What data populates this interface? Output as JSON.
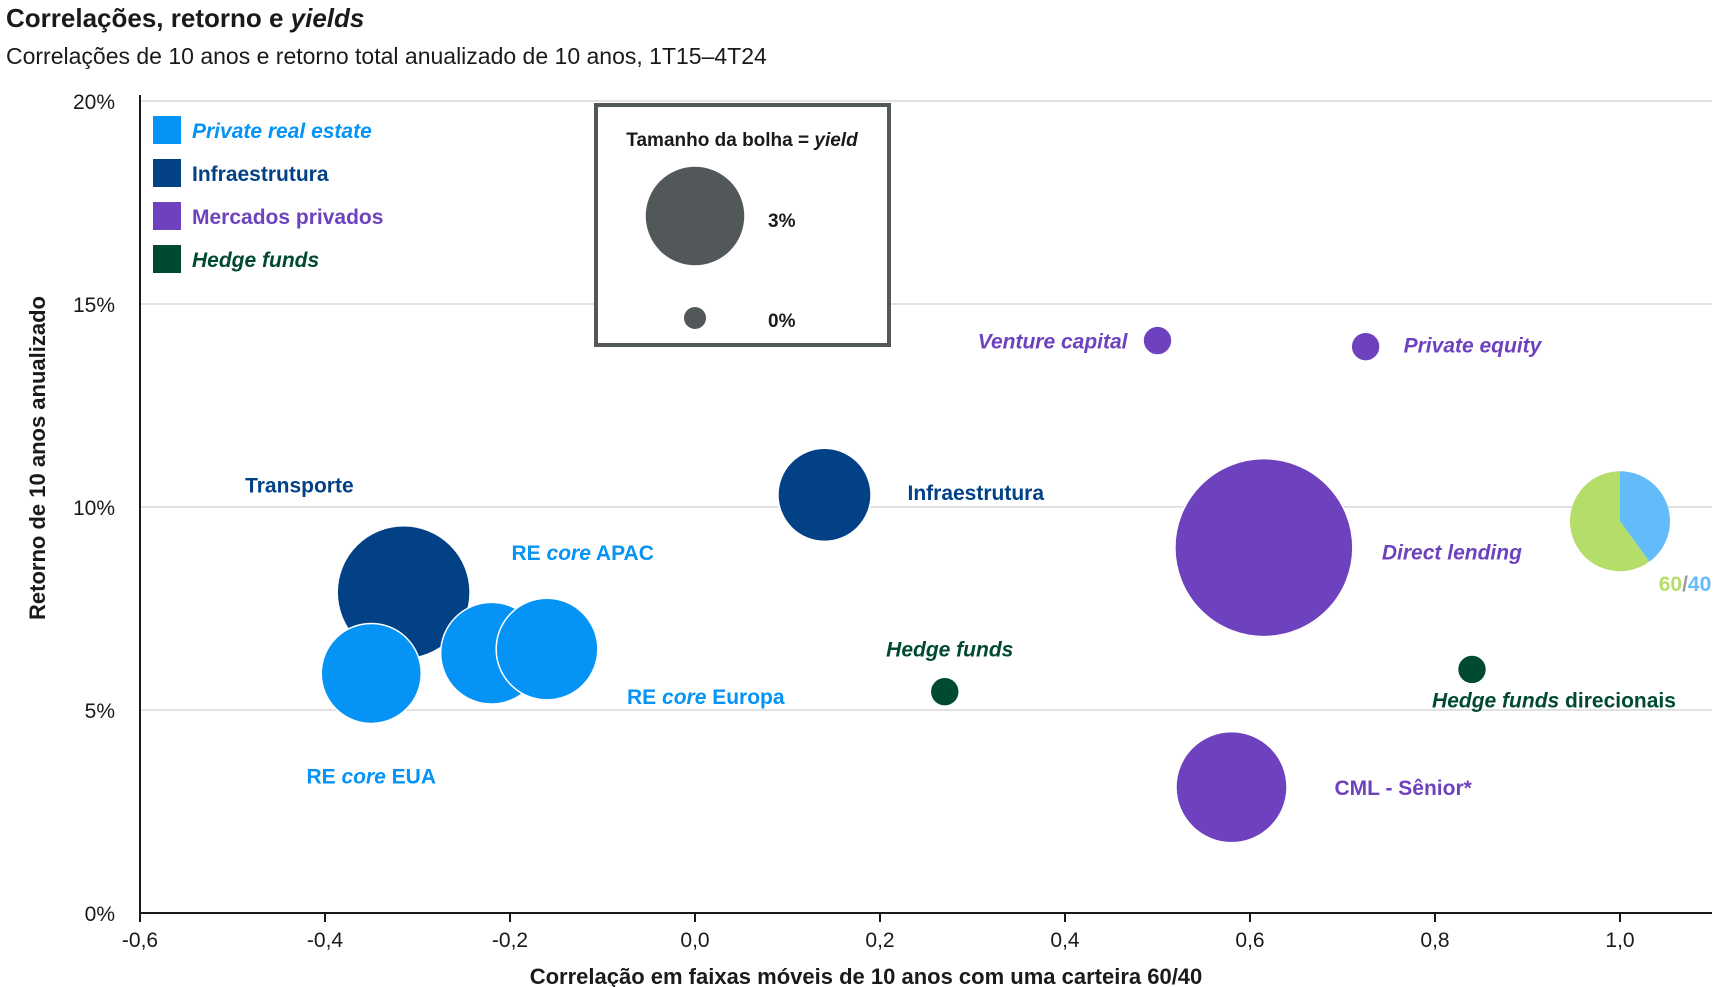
{
  "chart_data": {
    "type": "scatter",
    "title_main": "Correlações, retorno e ",
    "title_emph": "yields",
    "subtitle": "Correlações de 10 anos e retorno total anualizado de 10 anos, 1T15–4T24",
    "xlabel": "Correlação em faixas móveis de 10 anos com uma carteira 60/40",
    "ylabel": "Retorno de 10 anos anualizado",
    "xlim": [
      -0.6,
      1.1
    ],
    "ylim": [
      0,
      20
    ],
    "x_ticks": [
      -0.6,
      -0.4,
      -0.2,
      0.0,
      0.2,
      0.4,
      0.6,
      0.8,
      1.0
    ],
    "x_tick_labels": [
      "-0,6",
      "-0,4",
      "-0,2",
      "0,0",
      "0,2",
      "0,4",
      "0,6",
      "0,8",
      "1,0"
    ],
    "y_ticks": [
      0,
      5,
      10,
      15,
      20
    ],
    "y_tick_labels": [
      "0%",
      "5%",
      "10%",
      "15%",
      "20%"
    ],
    "colors": {
      "private_real_estate": "#0593F5",
      "infraestrutura": "#024186",
      "mercados_privados": "#6E42BF",
      "hedge_funds": "#004A2F",
      "size_key": "#52575A",
      "pie_60": "#B5DD6A",
      "pie_40": "#63BCF9"
    },
    "legend": [
      {
        "label": "Private real estate",
        "italic": true,
        "color": "#0593F5"
      },
      {
        "label": "Infraestrutura",
        "italic": false,
        "color": "#024186"
      },
      {
        "label": "Mercados privados",
        "italic": false,
        "color": "#6E42BF"
      },
      {
        "label": "Hedge funds",
        "italic": true,
        "color": "#004A2F"
      }
    ],
    "size_legend": {
      "title_main": "Tamanho da bolha = ",
      "title_emph": "yield",
      "items": [
        {
          "label": "3%",
          "yield": 3.0
        },
        {
          "label": "0%",
          "yield": 0.0
        }
      ]
    },
    "points": [
      {
        "name": "Transporte",
        "label_parts": [
          {
            "t": "Transporte",
            "i": false
          }
        ],
        "x": -0.315,
        "y": 7.9,
        "yield": 5.3,
        "color": "#024186"
      },
      {
        "name": "RE core EUA",
        "label_parts": [
          {
            "t": "RE ",
            "i": false
          },
          {
            "t": "core",
            "i": true
          },
          {
            "t": " EUA",
            "i": false
          }
        ],
        "x": -0.35,
        "y": 5.9,
        "yield": 3.0,
        "color": "#0593F5"
      },
      {
        "name": "RE core APAC",
        "label_parts": [
          {
            "t": "RE ",
            "i": false
          },
          {
            "t": "core",
            "i": true
          },
          {
            "t": " APAC",
            "i": false
          }
        ],
        "x": -0.22,
        "y": 6.4,
        "yield": 3.1,
        "color": "#0593F5"
      },
      {
        "name": "RE core Europa",
        "label_parts": [
          {
            "t": "RE ",
            "i": false
          },
          {
            "t": "core",
            "i": true
          },
          {
            "t": " Europa",
            "i": false
          }
        ],
        "x": -0.16,
        "y": 6.5,
        "yield": 3.1,
        "color": "#0593F5"
      },
      {
        "name": "Infraestrutura",
        "label_parts": [
          {
            "t": "Infraestrutura",
            "i": false
          }
        ],
        "x": 0.14,
        "y": 10.3,
        "yield": 2.6,
        "color": "#024186"
      },
      {
        "name": "Hedge funds",
        "label_parts": [
          {
            "t": "Hedge funds",
            "i": true
          }
        ],
        "x": 0.27,
        "y": 5.45,
        "yield": 0.25,
        "color": "#004A2F"
      },
      {
        "name": "Venture capital",
        "label_parts": [
          {
            "t": "Venture capital",
            "i": true
          }
        ],
        "x": 0.5,
        "y": 14.1,
        "yield": 0.25,
        "color": "#6E42BF"
      },
      {
        "name": "Private equity",
        "label_parts": [
          {
            "t": "Private equity",
            "i": true
          }
        ],
        "x": 0.725,
        "y": 13.95,
        "yield": 0.25,
        "color": "#6E42BF"
      },
      {
        "name": "Direct lending",
        "label_parts": [
          {
            "t": "Direct lending",
            "i": true
          }
        ],
        "x": 0.615,
        "y": 9.0,
        "yield": 9.5,
        "color": "#6E42BF"
      },
      {
        "name": "CML - Sênior*",
        "label_parts": [
          {
            "t": "CML - Sênior*",
            "i": false
          }
        ],
        "x": 0.58,
        "y": 3.1,
        "yield": 3.7,
        "color": "#6E42BF"
      },
      {
        "name": "Hedge funds direcionais",
        "label_parts": [
          {
            "t": "Hedge funds",
            "i": true
          },
          {
            "t": " direcionais",
            "i": false
          }
        ],
        "x": 0.84,
        "y": 6.0,
        "yield": 0.25,
        "color": "#004A2F"
      }
    ],
    "benchmark": {
      "name": "60/40",
      "x": 1.0,
      "y": 9.65,
      "label_60": "60",
      "label_sep": "/",
      "label_40": "40",
      "share_60": 0.6,
      "share_40": 0.4
    }
  }
}
